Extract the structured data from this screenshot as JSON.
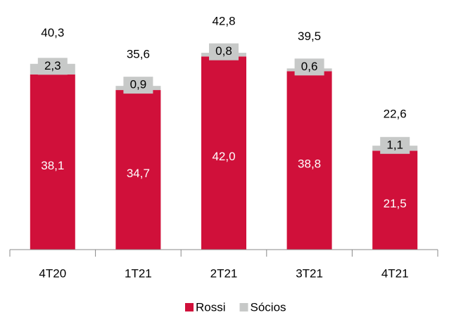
{
  "chart_data": {
    "type": "stacked_bar",
    "categories": [
      "4T20",
      "1T21",
      "2T21",
      "3T21",
      "4T21"
    ],
    "series": [
      {
        "name": "Rossi",
        "color": "#d0103a",
        "values": [
          38.1,
          34.7,
          42.0,
          38.8,
          21.5
        ],
        "value_labels": [
          "38,1",
          "34,7",
          "42,0",
          "38,8",
          "21,5"
        ]
      },
      {
        "name": "Sócios",
        "color": "#c7c9c8",
        "values": [
          2.3,
          0.9,
          0.8,
          0.6,
          1.1
        ],
        "value_labels": [
          "2,3",
          "0,9",
          "0,8",
          "0,6",
          "1,1"
        ]
      }
    ],
    "totals": [
      40.3,
      35.6,
      42.8,
      39.5,
      22.6
    ],
    "total_labels": [
      "40,3",
      "35,6",
      "42,8",
      "39,5",
      "22,6"
    ],
    "ylim": [
      0,
      50
    ],
    "legend": "bottom"
  }
}
